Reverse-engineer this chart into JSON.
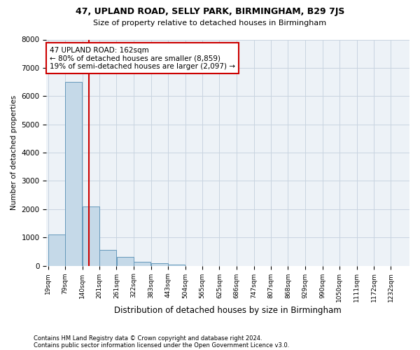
{
  "title1": "47, UPLAND ROAD, SELLY PARK, BIRMINGHAM, B29 7JS",
  "title2": "Size of property relative to detached houses in Birmingham",
  "xlabel": "Distribution of detached houses by size in Birmingham",
  "ylabel": "Number of detached properties",
  "footnote1": "Contains HM Land Registry data © Crown copyright and database right 2024.",
  "footnote2": "Contains public sector information licensed under the Open Government Licence v3.0.",
  "annotation_line1": "47 UPLAND ROAD: 162sqm",
  "annotation_line2": "← 80% of detached houses are smaller (8,859)",
  "annotation_line3": "19% of semi-detached houses are larger (2,097) →",
  "property_size_sqm": 162,
  "bar_edges": [
    19,
    79,
    140,
    201,
    261,
    322,
    383,
    443,
    504,
    565,
    625,
    686,
    747,
    807,
    868,
    929,
    990,
    1050,
    1111,
    1172,
    1232
  ],
  "bar_heights": [
    1100,
    6500,
    2100,
    550,
    300,
    150,
    100,
    50,
    0,
    0,
    0,
    0,
    0,
    0,
    0,
    0,
    0,
    0,
    0,
    0
  ],
  "bar_color": "#c5d9e8",
  "bar_edge_color": "#6699bb",
  "vline_color": "#cc0000",
  "vline_x": 162,
  "annotation_box_color": "#cc0000",
  "background_color": "#edf2f7",
  "grid_color": "#c8d4e0",
  "ylim": [
    0,
    8000
  ],
  "yticks": [
    0,
    1000,
    2000,
    3000,
    4000,
    5000,
    6000,
    7000,
    8000
  ]
}
